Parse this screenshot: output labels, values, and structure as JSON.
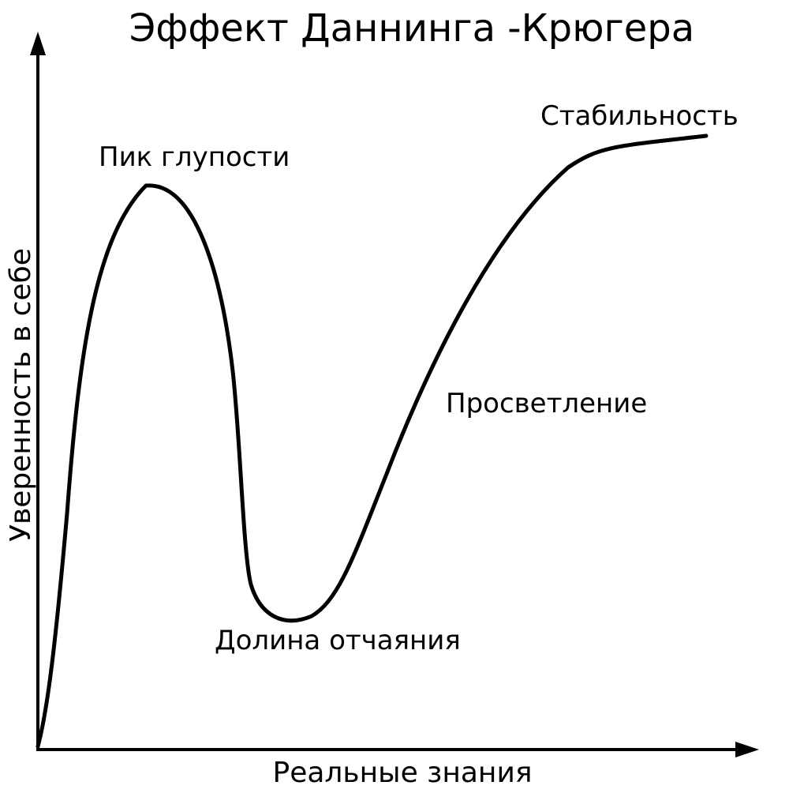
{
  "title": "Эффект Даннинга -Крюгера",
  "x_axis_label": "Реальные знания",
  "y_axis_label": "Уверенность в себе",
  "annotations": [
    "Пик глупости",
    "Стабильность",
    "Просветление",
    "Долина отчаяния"
  ]
}
